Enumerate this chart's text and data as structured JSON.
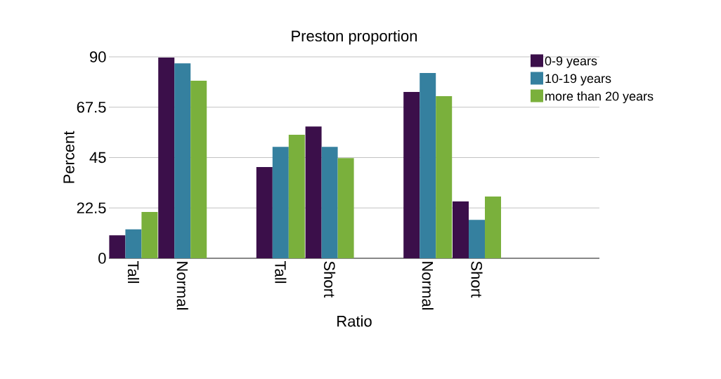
{
  "chart_data": {
    "type": "bar",
    "title": "Preston proportion",
    "xlabel": "Ratio",
    "ylabel": "Percent",
    "categories": [
      "Tall",
      "Normal",
      null,
      "Tall",
      "Short",
      null,
      "Normal",
      "Short",
      null,
      null
    ],
    "series": [
      {
        "name": "0-9 years",
        "color": "#3b0f4a",
        "values": [
          10.3,
          89.7,
          null,
          40.8,
          58.9,
          null,
          74.3,
          25.4,
          null,
          null
        ]
      },
      {
        "name": "10-19 years",
        "color": "#35809f",
        "values": [
          12.9,
          87.1,
          null,
          49.8,
          49.8,
          null,
          82.8,
          17.2,
          null,
          null
        ]
      },
      {
        "name": "more than 20 years",
        "color": "#7ab03c",
        "values": [
          20.7,
          79.3,
          null,
          55.2,
          44.8,
          null,
          72.4,
          27.6,
          null,
          null
        ]
      }
    ],
    "ylim": [
      0,
      90
    ],
    "yticks": [
      0,
      22.5,
      45,
      67.5,
      90
    ],
    "grid": "y",
    "legend": "top right"
  }
}
